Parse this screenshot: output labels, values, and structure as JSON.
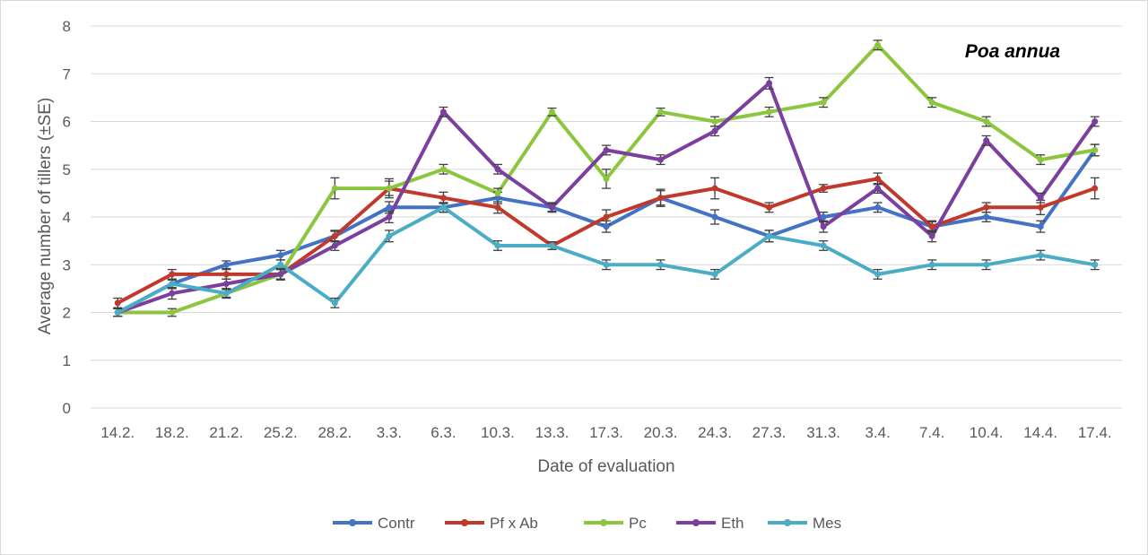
{
  "chart_data": {
    "type": "line",
    "annotation": "Poa annua",
    "xlabel": "Date of evaluation",
    "ylabel": "Average number of tillers (±SE)",
    "ylim": [
      0,
      8
    ],
    "yticks": [
      "0",
      "1",
      "2",
      "3",
      "4",
      "5",
      "6",
      "7",
      "8"
    ],
    "grid": true,
    "legend_position": "bottom",
    "error_bars": true,
    "categories": [
      "14.2.",
      "18.2.",
      "21.2.",
      "25.2.",
      "28.2.",
      "3.3.",
      "6.3.",
      "10.3.",
      "13.3.",
      "17.3.",
      "20.3.",
      "24.3.",
      "27.3.",
      "31.3.",
      "3.4.",
      "7.4.",
      "10.4.",
      "14.4.",
      "17.4."
    ],
    "series": [
      {
        "name": "Contr",
        "color": "#4472c4",
        "values": [
          2.0,
          2.6,
          3.0,
          3.2,
          3.6,
          4.2,
          4.2,
          4.4,
          4.2,
          3.8,
          4.4,
          4.0,
          3.6,
          4.0,
          4.2,
          3.8,
          4.0,
          3.8,
          5.4
        ],
        "errors": [
          0.08,
          0.1,
          0.08,
          0.1,
          0.1,
          0.12,
          0.1,
          0.12,
          0.1,
          0.12,
          0.18,
          0.15,
          0.12,
          0.1,
          0.1,
          0.1,
          0.1,
          0.12,
          0.12
        ]
      },
      {
        "name": "Pf x Ab",
        "color": "#c0392b",
        "values": [
          2.2,
          2.8,
          2.8,
          2.8,
          3.6,
          4.6,
          4.4,
          4.2,
          3.4,
          4.0,
          4.4,
          4.6,
          4.2,
          4.6,
          4.8,
          3.8,
          4.2,
          4.2,
          4.6
        ],
        "errors": [
          0.1,
          0.1,
          0.1,
          0.12,
          0.12,
          0.2,
          0.12,
          0.12,
          0.08,
          0.15,
          0.15,
          0.22,
          0.1,
          0.08,
          0.12,
          0.12,
          0.1,
          0.15,
          0.22
        ]
      },
      {
        "name": "Pc",
        "color": "#8cc63f",
        "values": [
          2.0,
          2.0,
          2.4,
          2.8,
          4.6,
          4.6,
          5.0,
          4.5,
          6.2,
          4.8,
          6.2,
          6.0,
          6.2,
          6.4,
          7.6,
          6.4,
          6.0,
          5.2,
          5.4
        ],
        "errors": [
          0.08,
          0.08,
          0.08,
          0.1,
          0.22,
          0.15,
          0.1,
          0.1,
          0.08,
          0.2,
          0.08,
          0.1,
          0.1,
          0.1,
          0.1,
          0.1,
          0.1,
          0.1,
          0.12
        ]
      },
      {
        "name": "Eth",
        "color": "#7b3f9e",
        "values": [
          2.0,
          2.4,
          2.6,
          2.8,
          3.4,
          4.0,
          6.2,
          5.0,
          4.2,
          5.4,
          5.2,
          5.8,
          6.8,
          3.8,
          4.6,
          3.6,
          5.6,
          4.4,
          6.0
        ],
        "errors": [
          0.08,
          0.12,
          0.1,
          0.1,
          0.1,
          0.12,
          0.1,
          0.1,
          0.08,
          0.1,
          0.1,
          0.1,
          0.12,
          0.12,
          0.1,
          0.12,
          0.1,
          0.1,
          0.1
        ]
      },
      {
        "name": "Mes",
        "color": "#4bacc6",
        "values": [
          2.0,
          2.6,
          2.4,
          3.0,
          2.2,
          3.6,
          4.2,
          3.4,
          3.4,
          3.0,
          3.0,
          2.8,
          3.6,
          3.4,
          2.8,
          3.0,
          3.0,
          3.2,
          3.0
        ],
        "errors": [
          0.08,
          0.08,
          0.1,
          0.1,
          0.1,
          0.12,
          0.1,
          0.1,
          0.08,
          0.1,
          0.1,
          0.1,
          0.12,
          0.1,
          0.1,
          0.1,
          0.1,
          0.1,
          0.1
        ]
      }
    ]
  }
}
